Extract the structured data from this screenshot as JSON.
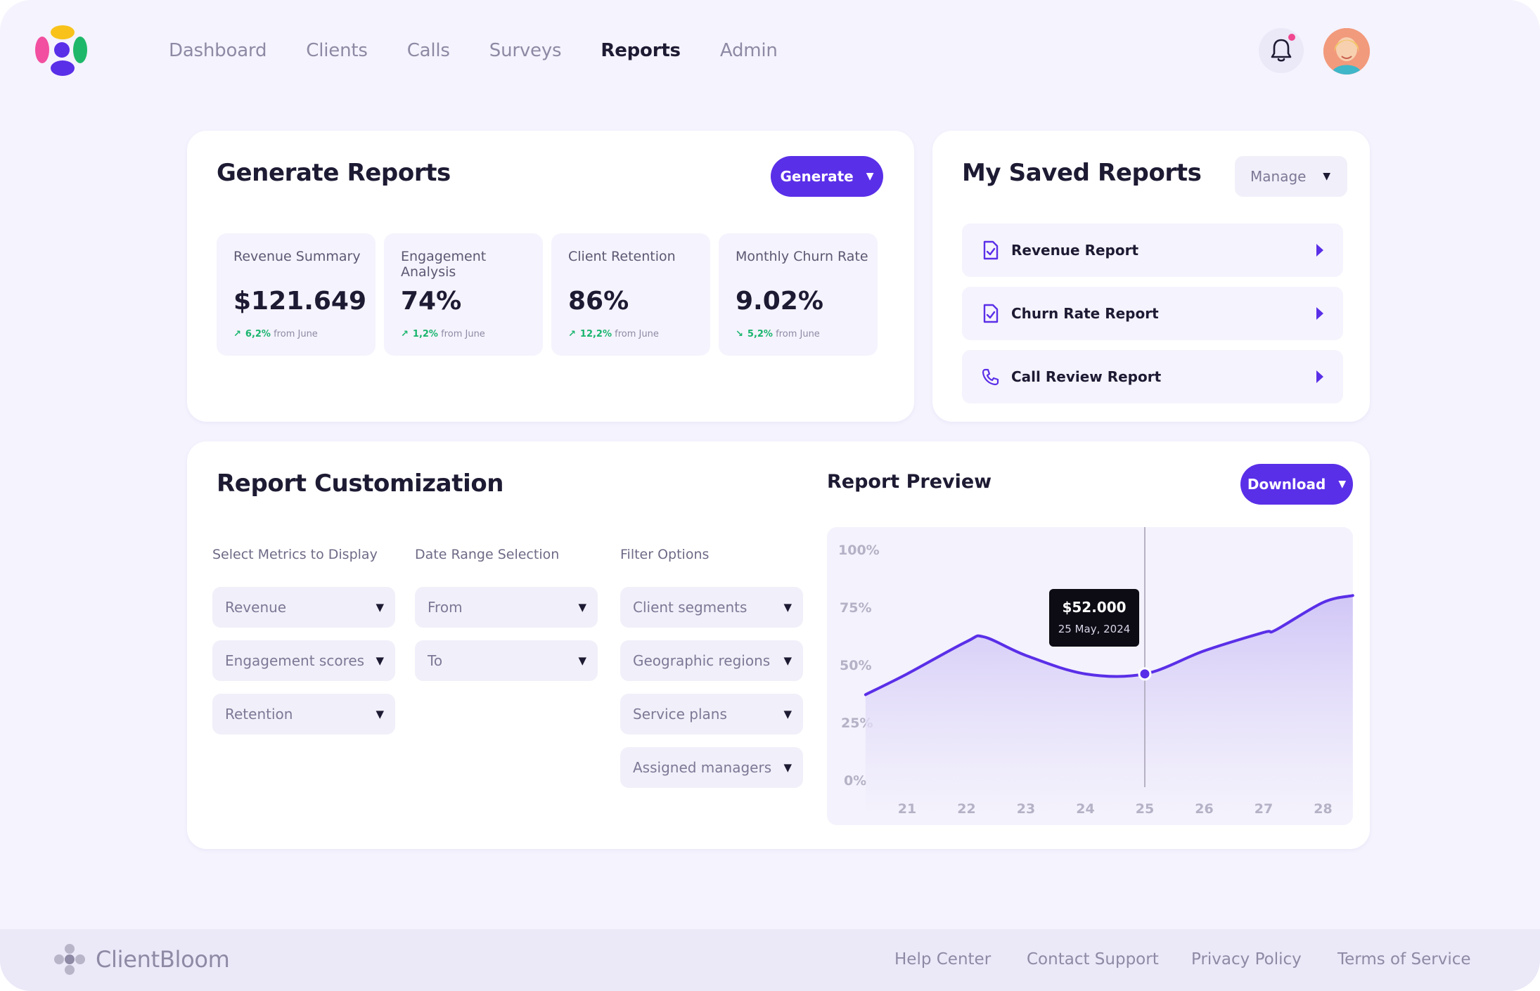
{
  "brand": {
    "name": "ClientBloom",
    "logo_colors": [
      "#f8c21a",
      "#f24fa0",
      "#1fb86a",
      "#5a2fe8"
    ]
  },
  "nav": {
    "items": [
      {
        "label": "Dashboard",
        "active": false
      },
      {
        "label": "Clients",
        "active": false
      },
      {
        "label": "Calls",
        "active": false
      },
      {
        "label": "Surveys",
        "active": false
      },
      {
        "label": "Reports",
        "active": true
      },
      {
        "label": "Admin",
        "active": false
      }
    ],
    "icons": [
      "bell-icon"
    ]
  },
  "generate": {
    "title": "Generate Reports",
    "button": "Generate",
    "stats": [
      {
        "label": "Revenue Summary",
        "value": "$121.649",
        "change": "6,2%",
        "trend": "up",
        "suffix": "from June"
      },
      {
        "label": "Engagement Analysis",
        "value": "74%",
        "change": "1,2%",
        "trend": "up",
        "suffix": "from June"
      },
      {
        "label": "Client Retention",
        "value": "86%",
        "change": "12,2%",
        "trend": "up",
        "suffix": "from June"
      },
      {
        "label": "Monthly Churn Rate",
        "value": "9.02%",
        "change": "5,2%",
        "trend": "down",
        "suffix": "from June"
      }
    ]
  },
  "saved": {
    "title": "My Saved Reports",
    "manage": "Manage",
    "items": [
      {
        "label": "Revenue Report",
        "icon": "file-check-icon"
      },
      {
        "label": "Churn Rate Report",
        "icon": "file-check-icon"
      },
      {
        "label": "Call Review Report",
        "icon": "phone-icon"
      }
    ]
  },
  "customization": {
    "title": "Report Customization",
    "columns": [
      {
        "label": "Select Metrics to Display",
        "options": [
          "Revenue",
          "Engagement scores",
          "Retention"
        ]
      },
      {
        "label": "Date Range Selection",
        "options": [
          "From",
          "To"
        ]
      },
      {
        "label": "Filter Options",
        "options": [
          "Client segments",
          "Geographic regions",
          "Service plans",
          "Assigned managers"
        ]
      }
    ]
  },
  "preview": {
    "title": "Report Preview",
    "download": "Download",
    "tooltip": {
      "value": "$52.000",
      "date": "25 May, 2024"
    }
  },
  "chart_data": {
    "type": "area",
    "x": [
      20.3,
      21,
      22,
      22.3,
      23,
      24,
      25,
      26,
      27,
      27.2,
      28,
      28.5
    ],
    "values": [
      0.38,
      0.47,
      0.61,
      0.63,
      0.55,
      0.47,
      0.47,
      0.57,
      0.65,
      0.66,
      0.78,
      0.81
    ],
    "xticks": [
      "21",
      "22",
      "23",
      "24",
      "25",
      "26",
      "27",
      "28"
    ],
    "yticks": [
      "100%",
      "75%",
      "50%",
      "25%",
      "0%"
    ],
    "ylim": [
      0,
      1
    ],
    "highlight_x": 25,
    "line_color": "#5a2fe8",
    "fill_color": "#d9d1f7"
  },
  "footer": {
    "links": [
      "Help Center",
      "Contact Support",
      "Privacy Policy",
      "Terms of Service"
    ]
  }
}
